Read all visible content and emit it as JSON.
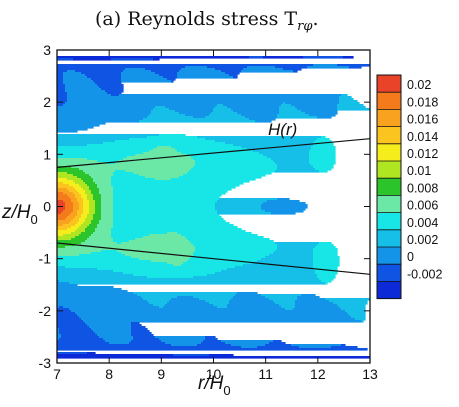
{
  "chart_data": {
    "type": "heatmap",
    "title": "(a) Reynolds stress T",
    "title_subscript": "rφ",
    "title_end": ".",
    "xlabel_main": "r/H",
    "xlabel_sub": "0",
    "ylabel_main": "z/H",
    "ylabel_sub": "0",
    "xlim": [
      7,
      13
    ],
    "ylim": [
      -3,
      3
    ],
    "x_ticks": [
      "7",
      "8",
      "9",
      "10",
      "11",
      "12",
      "13"
    ],
    "y_ticks": [
      "3",
      "2",
      "1",
      "0",
      "-1",
      "-2",
      "-3"
    ],
    "colorbar_levels": [
      "0.02",
      "0.018",
      "0.016",
      "0.014",
      "0.012",
      "0.01",
      "0.008",
      "0.006",
      "0.004",
      "0.002",
      "0",
      "-0.002"
    ],
    "colorbar_colors": [
      "#e9442a",
      "#f57a1c",
      "#f9a220",
      "#fcc41e",
      "#f6ee1c",
      "#b0e521",
      "#2bc52b",
      "#6ce8a6",
      "#18e6e6",
      "#16bfe8",
      "#1494e8",
      "#1054e3",
      "#0d2ad9"
    ],
    "curve_label": "H(r)",
    "curves": {
      "upper": [
        [
          7,
          0.75
        ],
        [
          13,
          1.3
        ]
      ],
      "lower": [
        [
          7,
          -0.7
        ],
        [
          13,
          -1.3
        ]
      ]
    },
    "field_notes": "Peak value about 0.02 near r/H0 = 7, z/H0 = 0; values decay to about 0.004-0.006 at large r near the midplane and to about 0 to -0.002 near z/H0 = +/-3."
  }
}
